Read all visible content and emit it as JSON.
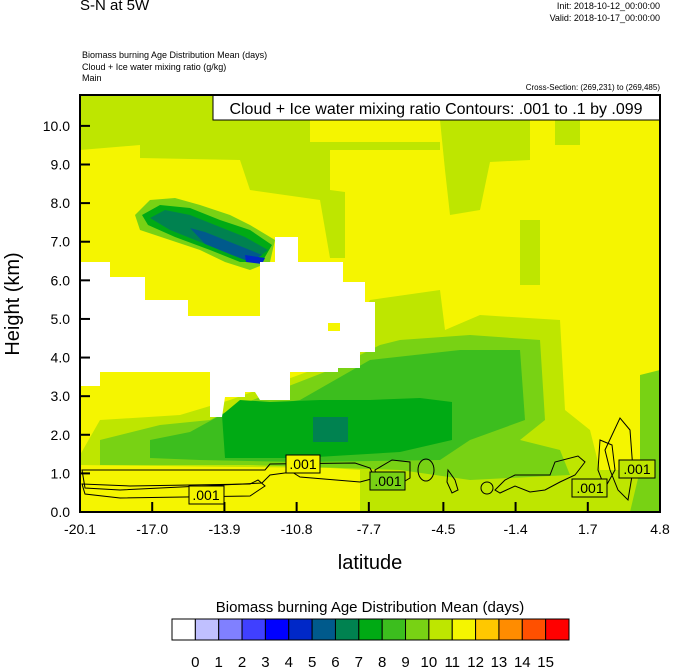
{
  "header": {
    "title": "S-N at 5W",
    "init": "Init: 2018-10-12_00:00:00",
    "valid": "Valid: 2018-10-17_00:00:00",
    "field1": "Biomass burning Age Distribution Mean   (days)",
    "field2": "Cloud + Ice water mixing ratio   (g/kg)",
    "field3": "Main",
    "cross_section": "Cross-Section: (269,231) to (269,485)"
  },
  "chart_data": {
    "type": "heatmap",
    "title": "S-N at 5W",
    "xlabel": "latitude",
    "ylabel": "Height (km)",
    "xlim": [
      -20.1,
      4.8
    ],
    "ylim": [
      0,
      10.8
    ],
    "x_ticks": [
      "-20.1",
      "-17.0",
      "-13.9",
      "-10.8",
      "-7.7",
      "-4.5",
      "-1.4",
      "1.7",
      "4.8"
    ],
    "y_ticks": [
      "0.0",
      "1.0",
      "2.0",
      "3.0",
      "4.0",
      "5.0",
      "6.0",
      "7.0",
      "8.0",
      "9.0",
      "10.0"
    ],
    "contour_info": "Cloud + Ice water mixing ratio Contours: .001 to .1 by .099",
    "contour_labels": [
      ".001",
      ".001",
      ".001",
      ".001",
      ".001"
    ],
    "colorbar": {
      "title": "Biomass burning Age Distribution Mean  (days)",
      "labels": [
        "0",
        "1",
        "2",
        "3",
        "4",
        "5",
        "6",
        "7",
        "8",
        "9",
        "10",
        "11",
        "12",
        "13",
        "14",
        "15"
      ],
      "colors": [
        "#ffffff",
        "#c0c0ff",
        "#8080ff",
        "#4040ff",
        "#0000ff",
        "#0028c8",
        "#005a8c",
        "#008250",
        "#00aa14",
        "#3cbe1e",
        "#78d214",
        "#bee600",
        "#f5f500",
        "#ffc800",
        "#ff8c00",
        "#ff5000",
        "#ff0000"
      ]
    },
    "grid": false
  }
}
